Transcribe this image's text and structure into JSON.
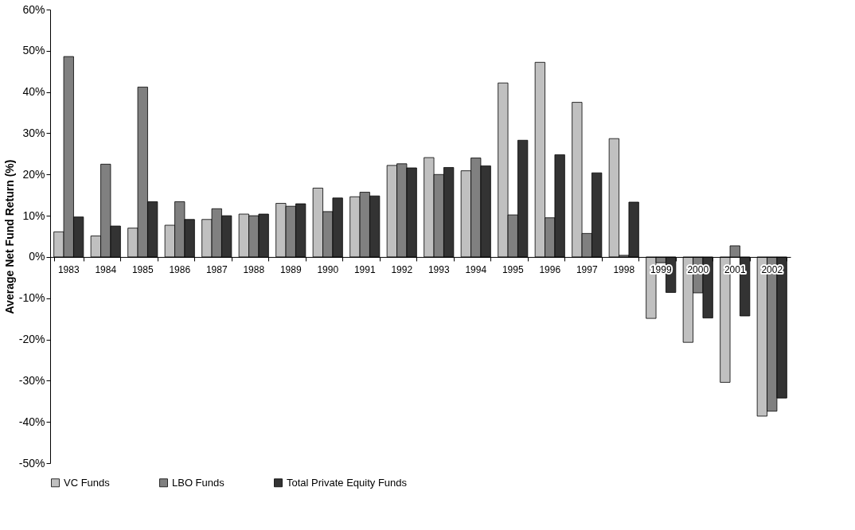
{
  "chart_data": {
    "type": "bar",
    "ylabel": "Average Net Fund Return (%)",
    "categories": [
      "1983",
      "1984",
      "1985",
      "1986",
      "1987",
      "1988",
      "1989",
      "1990",
      "1991",
      "1992",
      "1993",
      "1994",
      "1995",
      "1996",
      "1997",
      "1998",
      "1999",
      "2000",
      "2001",
      "2002"
    ],
    "series": [
      {
        "name": "VC Funds",
        "color": "#c0c0c0",
        "values": [
          6.1,
          5.1,
          7.0,
          7.7,
          9.1,
          10.4,
          13.0,
          16.7,
          14.6,
          22.2,
          24.1,
          20.9,
          42.2,
          47.2,
          37.5,
          28.7,
          -14.9,
          -20.7,
          -30.4,
          -38.6
        ]
      },
      {
        "name": "LBO Funds",
        "color": "#808080",
        "values": [
          48.6,
          22.5,
          41.2,
          13.4,
          11.7,
          10.0,
          12.3,
          11.0,
          15.7,
          22.6,
          20.0,
          24.0,
          10.2,
          9.5,
          5.7,
          0.4,
          -1.4,
          -8.7,
          2.7,
          -37.4
        ]
      },
      {
        "name": "Total Private Equity Funds",
        "color": "#333333",
        "values": [
          9.7,
          7.5,
          13.4,
          9.1,
          10.0,
          10.4,
          12.9,
          14.3,
          14.8,
          21.6,
          21.7,
          22.1,
          28.3,
          24.8,
          20.4,
          13.3,
          -8.6,
          -14.8,
          -14.3,
          -34.2
        ]
      }
    ],
    "ylim": [
      -50,
      60
    ],
    "yticks": [
      {
        "value": -50,
        "label": "-50%"
      },
      {
        "value": -40,
        "label": "-40%"
      },
      {
        "value": -30,
        "label": "-30%"
      },
      {
        "value": -20,
        "label": "-20%"
      },
      {
        "value": -10,
        "label": "-10%"
      },
      {
        "value": 0,
        "label": "0%"
      },
      {
        "value": 10,
        "label": "10%"
      },
      {
        "value": 20,
        "label": "20%"
      },
      {
        "value": 30,
        "label": "30%"
      },
      {
        "value": 40,
        "label": "40%"
      },
      {
        "value": 50,
        "label": "50%"
      },
      {
        "value": 60,
        "label": "60%"
      }
    ],
    "grid": false,
    "legend": "bottom"
  }
}
